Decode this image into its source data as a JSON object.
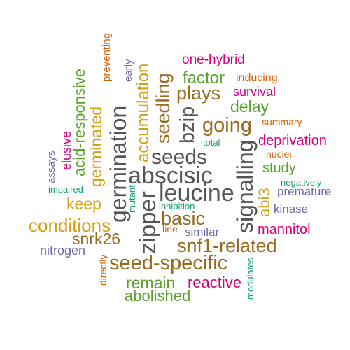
{
  "colors": {
    "gray": "#555555",
    "brown": "#986a1d",
    "gold": "#d4a017",
    "green": "#5aa02c",
    "magenta": "#d6007f",
    "purple": "#6a6aa8",
    "orange": "#d95f02",
    "teal": "#1b9e77"
  },
  "words": [
    {
      "text": "one-hybrid",
      "color": "magenta"
    },
    {
      "text": "preventing",
      "color": "orange"
    },
    {
      "text": "early",
      "color": "purple"
    },
    {
      "text": "acid-responsive",
      "color": "green"
    },
    {
      "text": "accumulation",
      "color": "gold"
    },
    {
      "text": "seedling",
      "color": "brown"
    },
    {
      "text": "factor",
      "color": "green"
    },
    {
      "text": "inducing",
      "color": "orange"
    },
    {
      "text": "plays",
      "color": "brown"
    },
    {
      "text": "survival",
      "color": "magenta"
    },
    {
      "text": "germinated",
      "color": "gold"
    },
    {
      "text": "germination",
      "color": "gray"
    },
    {
      "text": "delay",
      "color": "green"
    },
    {
      "text": "bzip",
      "color": "gray"
    },
    {
      "text": "going",
      "color": "brown"
    },
    {
      "text": "summary",
      "color": "orange"
    },
    {
      "text": "elusive",
      "color": "magenta"
    },
    {
      "text": "deprivation",
      "color": "magenta"
    },
    {
      "text": "total",
      "color": "teal"
    },
    {
      "text": "seeds",
      "color": "gray"
    },
    {
      "text": "nuclei",
      "color": "orange"
    },
    {
      "text": "assays",
      "color": "purple"
    },
    {
      "text": "signalling",
      "color": "gray"
    },
    {
      "text": "study",
      "color": "green"
    },
    {
      "text": "abscisic",
      "color": "gray"
    },
    {
      "text": "negatively",
      "color": "teal"
    },
    {
      "text": "impaired",
      "color": "teal"
    },
    {
      "text": "leucine",
      "color": "gray"
    },
    {
      "text": "abi3",
      "color": "gold"
    },
    {
      "text": "premature",
      "color": "purple"
    },
    {
      "text": "keep",
      "color": "gold"
    },
    {
      "text": "mutant",
      "color": "teal"
    },
    {
      "text": "inhibition",
      "color": "teal"
    },
    {
      "text": "kinase",
      "color": "purple"
    },
    {
      "text": "basic",
      "color": "brown"
    },
    {
      "text": "zipper",
      "color": "gray"
    },
    {
      "text": "conditions",
      "color": "gold"
    },
    {
      "text": "mannitol",
      "color": "magenta"
    },
    {
      "text": "line",
      "color": "orange"
    },
    {
      "text": "similar",
      "color": "purple"
    },
    {
      "text": "snrk26",
      "color": "brown"
    },
    {
      "text": "snf1-related",
      "color": "brown"
    },
    {
      "text": "nitrogen",
      "color": "purple"
    },
    {
      "text": "seed-specific",
      "color": "brown"
    },
    {
      "text": "modulates",
      "color": "teal"
    },
    {
      "text": "directly",
      "color": "orange"
    },
    {
      "text": "remain",
      "color": "green"
    },
    {
      "text": "reactive",
      "color": "magenta"
    },
    {
      "text": "abolished",
      "color": "green"
    }
  ]
}
